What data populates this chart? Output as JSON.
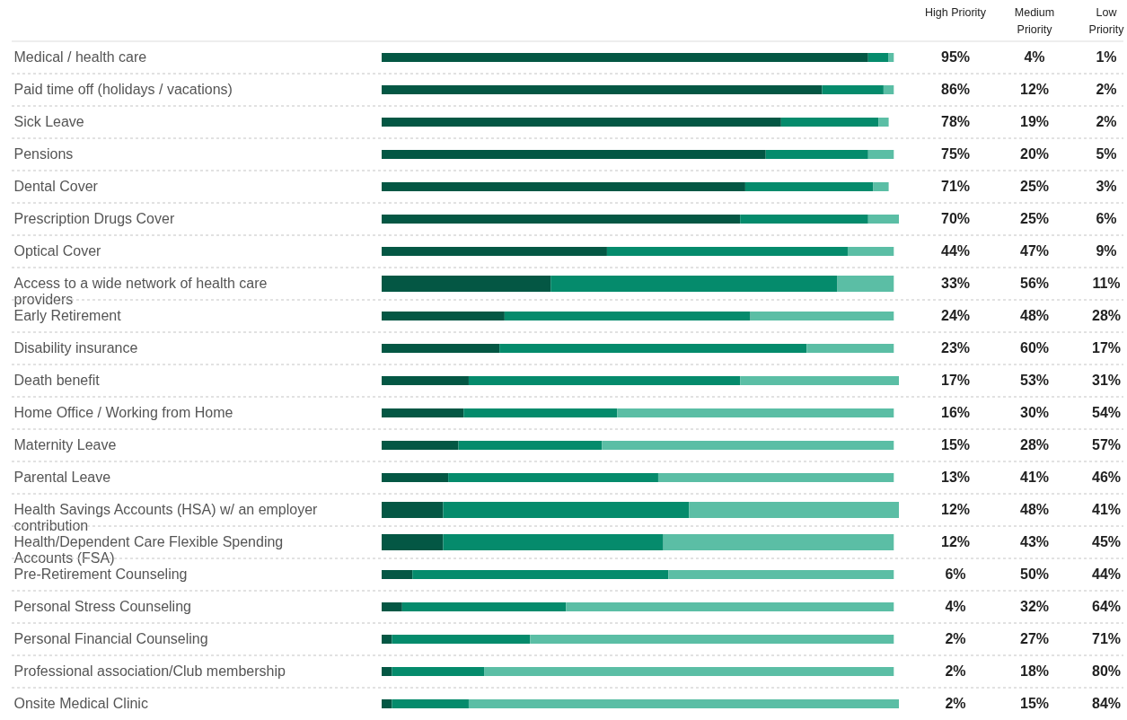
{
  "chart_data": {
    "type": "bar",
    "orientation": "horizontal",
    "stacked": true,
    "grid": "y",
    "categories": [
      "Medical / health care",
      "Paid time off (holidays / vacations)",
      "Sick Leave",
      "Pensions",
      "Dental Cover",
      "Prescription Drugs Cover",
      "Optical Cover",
      "Access to a wide network of health care providers",
      "Early Retirement",
      "Disability insurance",
      "Death benefit",
      "Home Office / Working from Home",
      "Maternity Leave",
      "Parental Leave",
      "Health Savings Accounts (HSA) w/ an employer contribution",
      "Health/Dependent Care Flexible Spending Accounts (FSA)",
      "Pre-Retirement Counseling",
      "Personal Stress Counseling",
      "Personal Financial Counseling",
      "Professional association/Club membership",
      "Onsite Medical Clinic"
    ],
    "series": [
      {
        "name": "High Priority",
        "color": "#045744",
        "values": [
          95,
          86,
          78,
          75,
          71,
          70,
          44,
          33,
          24,
          23,
          17,
          16,
          15,
          13,
          12,
          12,
          6,
          4,
          2,
          2,
          2
        ],
        "value_labels": [
          "95%",
          "86%",
          "78%",
          "75%",
          "71%",
          "70%",
          "44%",
          "33%",
          "24%",
          "23%",
          "17%",
          "16%",
          "15%",
          "13%",
          "12%",
          "12%",
          "6%",
          "4%",
          "2%",
          "2%",
          "2%"
        ]
      },
      {
        "name": "Medium Priority",
        "color": "#058b6c",
        "values": [
          4,
          12,
          19,
          20,
          25,
          25,
          47,
          56,
          48,
          60,
          53,
          30,
          28,
          41,
          48,
          43,
          50,
          32,
          27,
          18,
          15
        ],
        "value_labels": [
          "4%",
          "12%",
          "19%",
          "20%",
          "25%",
          "25%",
          "47%",
          "56%",
          "48%",
          "60%",
          "53%",
          "30%",
          "28%",
          "41%",
          "48%",
          "43%",
          "50%",
          "32%",
          "27%",
          "18%",
          "15%"
        ]
      },
      {
        "name": "Low Priority",
        "color": "#5bbea5",
        "values": [
          1,
          2,
          2,
          5,
          3,
          6,
          9,
          11,
          28,
          17,
          31,
          54,
          57,
          46,
          41,
          45,
          44,
          64,
          71,
          80,
          84
        ],
        "value_labels": [
          "1%",
          "2%",
          "2%",
          "5%",
          "3%",
          "6%",
          "9%",
          "11%",
          "28%",
          "17%",
          "31%",
          "54%",
          "57%",
          "46%",
          "41%",
          "45%",
          "44%",
          "64%",
          "71%",
          "80%",
          "84%"
        ]
      }
    ]
  }
}
